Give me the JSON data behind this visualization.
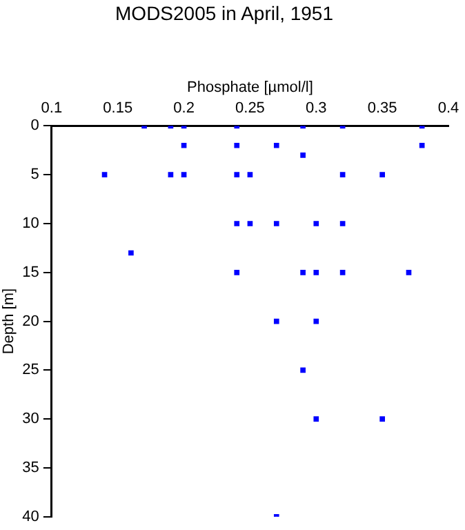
{
  "chart_data": {
    "type": "scatter",
    "title": "MODS2005 in April, 1951",
    "xlabel": "Phosphate [µmol/l]",
    "ylabel": "Depth [m]",
    "x": [
      0.17,
      0.19,
      0.2,
      0.24,
      0.29,
      0.32,
      0.38,
      0.2,
      0.24,
      0.27,
      0.38,
      0.29,
      0.14,
      0.19,
      0.2,
      0.24,
      0.25,
      0.32,
      0.35,
      0.24,
      0.25,
      0.27,
      0.3,
      0.32,
      0.16,
      0.24,
      0.29,
      0.3,
      0.32,
      0.37,
      0.27,
      0.3,
      0.29,
      0.3,
      0.35,
      0.27
    ],
    "values": [
      0,
      0,
      0,
      0,
      0,
      0,
      0,
      2,
      2,
      2,
      2,
      3,
      5,
      5,
      5,
      5,
      5,
      5,
      5,
      10,
      10,
      10,
      10,
      10,
      13,
      15,
      15,
      15,
      15,
      15,
      20,
      20,
      25,
      30,
      30,
      40
    ],
    "color": "#0000ff",
    "marker": "square",
    "grid": false,
    "legend": false,
    "xlim": [
      0.1,
      0.4
    ],
    "xticks": [
      0.1,
      0.15,
      0.2,
      0.25,
      0.3,
      0.35,
      0.4
    ],
    "ylim": [
      40,
      0
    ],
    "yticks": [
      0,
      5,
      10,
      15,
      20,
      25,
      30,
      35,
      40
    ]
  }
}
